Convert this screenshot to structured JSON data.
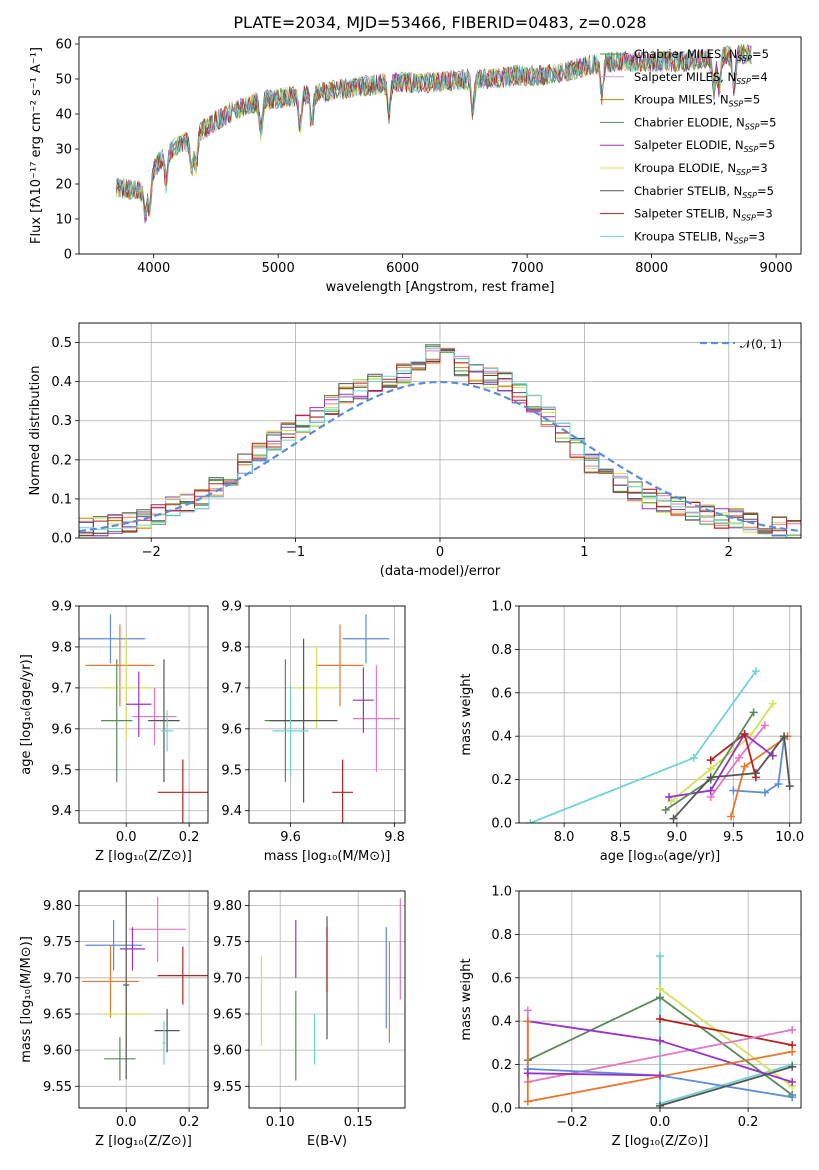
{
  "chart_data": [
    {
      "type": "line",
      "title": "PLATE=2034, MJD=53466, FIBERID=0483, z=0.028",
      "xlabel": "wavelength [Angstrom, rest frame]",
      "ylabel": "Flux [fλ10⁻¹⁷ erg cm⁻² s⁻¹ A⁻¹]",
      "xlim": [
        3400,
        9200
      ],
      "ylim": [
        0,
        62
      ],
      "xticks": [
        4000,
        5000,
        6000,
        7000,
        8000,
        9000
      ],
      "yticks": [
        0,
        10,
        20,
        30,
        40,
        50,
        60
      ],
      "legend_position": "top-right",
      "spectrum_range": [
        3700,
        8800
      ],
      "continuum": {
        "wavelength": [
          3700,
          3900,
          4000,
          4100,
          4300,
          4500,
          4700,
          4900,
          5100,
          5300,
          5500,
          5700,
          5900,
          6100,
          6300,
          6500,
          6700,
          6900,
          7100,
          7300,
          7500,
          7700,
          7900,
          8100,
          8300,
          8500,
          8700,
          8800
        ],
        "flux": [
          19,
          18,
          24,
          29,
          33,
          38,
          42,
          44,
          45,
          46,
          47,
          48,
          49,
          49,
          49,
          50,
          50,
          51,
          51,
          52,
          54,
          55,
          55,
          55,
          55,
          56,
          57,
          57
        ]
      },
      "series": [
        {
          "name": "Chabrier MILES, N_SSP=5",
          "color": "#2ca02c"
        },
        {
          "name": "Salpeter MILES, N_SSP=4",
          "color": "#bfa0e0"
        },
        {
          "name": "Kroupa MILES, N_SSP=5",
          "color": "#b8860b"
        },
        {
          "name": "Chabrier ELODIE, N_SSP=5",
          "color": "#5a8a5a"
        },
        {
          "name": "Salpeter ELODIE, N_SSP=5",
          "color": "#9932cc"
        },
        {
          "name": "Kroupa ELODIE, N_SSP=3",
          "color": "#d4e157"
        },
        {
          "name": "Chabrier STELIB, N_SSP=5",
          "color": "#555555"
        },
        {
          "name": "Salpeter STELIB, N_SSP=3",
          "color": "#b22222"
        },
        {
          "name": "Kroupa STELIB, N_SSP=3",
          "color": "#6fd3d3"
        }
      ]
    },
    {
      "type": "histogram",
      "xlabel": "(data-model)/error",
      "ylabel": "Normed distribution",
      "xlim": [
        -2.5,
        2.5
      ],
      "ylim": [
        0,
        0.55
      ],
      "xticks": [
        -2,
        -1,
        0,
        1,
        2
      ],
      "yticks": [
        0.0,
        0.1,
        0.2,
        0.3,
        0.4,
        0.5
      ],
      "grid": true,
      "legend_position": "top-right",
      "legend": "𝒩(0, 1)",
      "gaussian_color": "#5b8ed6",
      "bin_width": 0.1,
      "bins_start": -2.5,
      "hist_colors": [
        "#2ca02c",
        "#e377c2",
        "#e8772e",
        "#5a8a5a",
        "#9932cc",
        "#d4e157",
        "#555555",
        "#b22222",
        "#6fd3d3"
      ],
      "base_values": [
        0.03,
        0.03,
        0.035,
        0.04,
        0.05,
        0.06,
        0.08,
        0.09,
        0.1,
        0.13,
        0.16,
        0.19,
        0.22,
        0.25,
        0.27,
        0.29,
        0.31,
        0.34,
        0.37,
        0.38,
        0.4,
        0.41,
        0.42,
        0.44,
        0.47,
        0.46,
        0.44,
        0.42,
        0.41,
        0.4,
        0.37,
        0.34,
        0.31,
        0.27,
        0.23,
        0.19,
        0.16,
        0.14,
        0.12,
        0.1,
        0.09,
        0.08,
        0.07,
        0.06,
        0.05,
        0.05,
        0.04,
        0.03,
        0.03,
        0.02
      ]
    },
    {
      "type": "scatter",
      "xlabel": "Z [log₁₀(Z/Z⊙)]",
      "ylabel": "age  [log₁₀(age/yr)]",
      "xlim": [
        -0.15,
        0.26
      ],
      "ylim": [
        9.37,
        9.9
      ],
      "xticks": [
        0.0,
        0.2
      ],
      "yticks": [
        9.4,
        9.5,
        9.6,
        9.7,
        9.8,
        9.9
      ],
      "grid": true,
      "points": [
        {
          "x": -0.05,
          "y": 9.82,
          "xerr": 0.11,
          "yerr": 0.06,
          "color": "#5b8ed6"
        },
        {
          "x": -0.02,
          "y": 9.755,
          "xerr": 0.11,
          "yerr": 0.1,
          "color": "#e8772e"
        },
        {
          "x": 0.0,
          "y": 9.7,
          "xerr": 0.08,
          "yerr": 0.13,
          "color": "#d4e157"
        },
        {
          "x": -0.03,
          "y": 9.62,
          "xerr": 0.05,
          "yerr": 0.15,
          "color": "#5a8a5a"
        },
        {
          "x": 0.09,
          "y": 9.63,
          "xerr": 0.07,
          "yerr": 0.07,
          "color": "#e377c2"
        },
        {
          "x": 0.04,
          "y": 9.66,
          "xerr": 0.04,
          "yerr": 0.08,
          "color": "#9932cc"
        },
        {
          "x": 0.12,
          "y": 9.62,
          "xerr": 0.05,
          "yerr": 0.15,
          "color": "#555555"
        },
        {
          "x": 0.13,
          "y": 9.595,
          "xerr": 0.02,
          "yerr": 0.05,
          "color": "#6fd3d3"
        },
        {
          "x": 0.18,
          "y": 9.445,
          "xerr": 0.08,
          "yerr": 0.08,
          "color": "#b22222"
        }
      ]
    },
    {
      "type": "scatter",
      "xlabel": "mass [log₁₀(M/M⊙)]",
      "ylabel": "",
      "xlim": [
        9.52,
        9.82
      ],
      "ylim": [
        9.37,
        9.9
      ],
      "xticks": [
        9.6,
        9.8
      ],
      "yticks": [
        9.4,
        9.5,
        9.6,
        9.7,
        9.8,
        9.9
      ],
      "grid": true,
      "points": [
        {
          "x": 9.745,
          "y": 9.82,
          "xerr": 0.045,
          "yerr": 0.06,
          "color": "#5b8ed6"
        },
        {
          "x": 9.695,
          "y": 9.755,
          "xerr": 0.045,
          "yerr": 0.1,
          "color": "#e8772e"
        },
        {
          "x": 9.65,
          "y": 9.7,
          "xerr": 0.045,
          "yerr": 0.1,
          "color": "#d4e157"
        },
        {
          "x": 9.59,
          "y": 9.62,
          "xerr": 0.04,
          "yerr": 0.15,
          "color": "#5a8a5a"
        },
        {
          "x": 9.765,
          "y": 9.625,
          "xerr": 0.045,
          "yerr": 0.13,
          "color": "#e377c2"
        },
        {
          "x": 9.74,
          "y": 9.67,
          "xerr": 0.02,
          "yerr": 0.08,
          "color": "#9932cc"
        },
        {
          "x": 9.625,
          "y": 9.62,
          "xerr": 0.065,
          "yerr": 0.2,
          "color": "#555555"
        },
        {
          "x": 9.6,
          "y": 9.595,
          "xerr": 0.035,
          "yerr": 0.11,
          "color": "#6fd3d3"
        },
        {
          "x": 9.7,
          "y": 9.445,
          "xerr": 0.02,
          "yerr": 0.08,
          "color": "#b22222"
        }
      ]
    },
    {
      "type": "line",
      "xlabel": "age  [log₁₀(age/yr)]",
      "ylabel": "mass weight",
      "xlim": [
        7.6,
        10.1
      ],
      "ylim": [
        0,
        1
      ],
      "xticks": [
        8.0,
        8.5,
        9.0,
        9.5,
        10.0
      ],
      "yticks": [
        0.0,
        0.2,
        0.4,
        0.6,
        0.8,
        1.0
      ],
      "grid": true,
      "series": [
        {
          "color": "#6fd3d3",
          "x": [
            7.7,
            9.15,
            9.7
          ],
          "y": [
            0.0,
            0.3,
            0.7
          ]
        },
        {
          "color": "#d4e157",
          "x": [
            8.95,
            9.3,
            9.65,
            9.85
          ],
          "y": [
            0.1,
            0.25,
            0.4,
            0.55
          ]
        },
        {
          "color": "#5b8ed6",
          "x": [
            9.5,
            9.78,
            9.9,
            9.95
          ],
          "y": [
            0.15,
            0.14,
            0.18,
            0.39
          ]
        },
        {
          "color": "#e8772e",
          "x": [
            9.48,
            9.6,
            9.98
          ],
          "y": [
            0.03,
            0.26,
            0.4
          ]
        },
        {
          "color": "#e377c2",
          "x": [
            9.3,
            9.55,
            9.78
          ],
          "y": [
            0.12,
            0.3,
            0.45
          ]
        },
        {
          "color": "#9932cc",
          "x": [
            8.93,
            9.3,
            9.6,
            9.85
          ],
          "y": [
            0.12,
            0.15,
            0.41,
            0.31
          ]
        },
        {
          "color": "#b22222",
          "x": [
            9.3,
            9.6,
            9.7
          ],
          "y": [
            0.29,
            0.41,
            0.21
          ]
        },
        {
          "color": "#5a8a5a",
          "x": [
            8.9,
            9.3,
            9.68
          ],
          "y": [
            0.06,
            0.2,
            0.51
          ]
        },
        {
          "color": "#555555",
          "x": [
            8.97,
            9.3,
            9.7,
            9.95,
            10.0
          ],
          "y": [
            0.02,
            0.21,
            0.23,
            0.4,
            0.17
          ]
        }
      ]
    },
    {
      "type": "scatter",
      "xlabel": "Z [log₁₀(Z/Z⊙)]",
      "ylabel": "mass [log₁₀(M/M⊙)]",
      "xlim": [
        -0.15,
        0.26
      ],
      "ylim": [
        9.52,
        9.82
      ],
      "xticks": [
        0.0,
        0.2
      ],
      "yticks": [
        9.55,
        9.6,
        9.65,
        9.7,
        9.75,
        9.8
      ],
      "grid": true,
      "points": [
        {
          "x": -0.04,
          "y": 9.745,
          "xerr": 0.09,
          "yerr": 0.035,
          "color": "#5b8ed6"
        },
        {
          "x": -0.05,
          "y": 9.695,
          "xerr": 0.09,
          "yerr": 0.05,
          "color": "#e8772e"
        },
        {
          "x": 0.0,
          "y": 9.65,
          "xerr": 0.07,
          "yerr": 0.045,
          "color": "#d4e157"
        },
        {
          "x": -0.02,
          "y": 9.588,
          "xerr": 0.05,
          "yerr": 0.03,
          "color": "#5a8a5a"
        },
        {
          "x": 0.1,
          "y": 9.767,
          "xerr": 0.09,
          "yerr": 0.045,
          "color": "#e377c2"
        },
        {
          "x": 0.02,
          "y": 9.74,
          "xerr": 0.04,
          "yerr": 0.03,
          "color": "#9932cc"
        },
        {
          "x": 0.0,
          "y": 9.69,
          "xerr": 0.01,
          "yerr": 0.13,
          "color": "#555555"
        },
        {
          "x": 0.13,
          "y": 9.627,
          "xerr": 0.04,
          "yerr": 0.03,
          "color": "#555555"
        },
        {
          "x": 0.12,
          "y": 9.61,
          "xerr": 0.005,
          "yerr": 0.03,
          "color": "#6fd3d3"
        },
        {
          "x": 0.18,
          "y": 9.703,
          "xerr": 0.08,
          "yerr": 0.04,
          "color": "#b22222"
        }
      ]
    },
    {
      "type": "scatter",
      "xlabel": "E(B-V)",
      "ylabel": "",
      "xlim": [
        0.08,
        0.18
      ],
      "ylim": [
        9.52,
        9.82
      ],
      "xticks": [
        0.1,
        0.15
      ],
      "yticks": [
        9.55,
        9.6,
        9.65,
        9.7,
        9.75,
        9.8
      ],
      "grid": true,
      "points": [
        {
          "x": 0.088,
          "y": 9.668,
          "xerr": 0,
          "yerr": 0.062,
          "color": "#d4e157"
        },
        {
          "x": 0.11,
          "y": 9.62,
          "xerr": 0,
          "yerr": 0.062,
          "color": "#5a8a5a"
        },
        {
          "x": 0.11,
          "y": 9.74,
          "xerr": 0,
          "yerr": 0.04,
          "color": "#9932cc"
        },
        {
          "x": 0.122,
          "y": 9.615,
          "xerr": 0,
          "yerr": 0.035,
          "color": "#6fd3d3"
        },
        {
          "x": 0.13,
          "y": 9.7,
          "xerr": 0,
          "yerr": 0.085,
          "color": "#555555"
        },
        {
          "x": 0.13,
          "y": 9.725,
          "xerr": 0,
          "yerr": 0.045,
          "color": "#b22222"
        },
        {
          "x": 0.168,
          "y": 9.7,
          "xerr": 0,
          "yerr": 0.07,
          "color": "#5b8ed6"
        },
        {
          "x": 0.17,
          "y": 9.68,
          "xerr": 0,
          "yerr": 0.07,
          "color": "#e8772e"
        },
        {
          "x": 0.177,
          "y": 9.74,
          "xerr": 0,
          "yerr": 0.07,
          "color": "#e377c2"
        }
      ]
    },
    {
      "type": "line",
      "xlabel": "Z [log₁₀(Z/Z⊙)]",
      "ylabel": "mass weight",
      "xlim": [
        -0.32,
        0.32
      ],
      "ylim": [
        0,
        1
      ],
      "xticks": [
        -0.2,
        0.0,
        0.2
      ],
      "yticks": [
        0.0,
        0.2,
        0.4,
        0.6,
        0.8,
        1.0
      ],
      "grid": true,
      "series": [
        {
          "color": "#6fd3d3",
          "x": [
            0.0,
            0.0,
            0.3
          ],
          "y": [
            0.7,
            0.02,
            0.2
          ]
        },
        {
          "color": "#d4e157",
          "x": [
            0.0,
            0.3
          ],
          "y": [
            0.55,
            0.1
          ]
        },
        {
          "color": "#5a8a5a",
          "x": [
            -0.3,
            0.0,
            0.3
          ],
          "y": [
            0.22,
            0.51,
            0.06
          ]
        },
        {
          "color": "#b22222",
          "x": [
            0.0,
            0.3
          ],
          "y": [
            0.41,
            0.29
          ]
        },
        {
          "color": "#e377c2",
          "x": [
            -0.3,
            -0.3,
            0.3
          ],
          "y": [
            0.45,
            0.12,
            0.36
          ]
        },
        {
          "color": "#9932cc",
          "x": [
            -0.3,
            0.0,
            0.3
          ],
          "y": [
            0.4,
            0.31,
            0.12
          ]
        },
        {
          "color": "#e8772e",
          "x": [
            -0.3,
            -0.3,
            0.3
          ],
          "y": [
            0.4,
            0.03,
            0.26
          ]
        },
        {
          "color": "#5b8ed6",
          "x": [
            -0.3,
            0.0,
            0.3
          ],
          "y": [
            0.18,
            0.15,
            0.05
          ]
        },
        {
          "color": "#9932cc",
          "x": [
            -0.3,
            0.0
          ],
          "y": [
            0.16,
            0.15
          ]
        },
        {
          "color": "#555555",
          "x": [
            0.0,
            0.3
          ],
          "y": [
            0.01,
            0.19
          ]
        }
      ]
    }
  ]
}
